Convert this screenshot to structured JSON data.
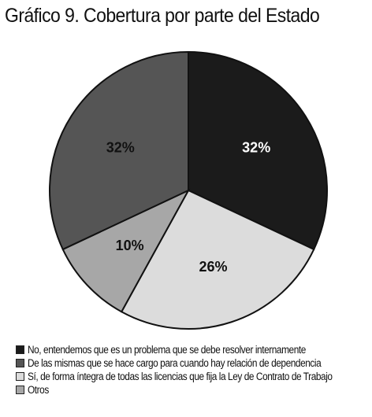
{
  "title": "Gráfico 9. Cobertura por parte del Estado",
  "colors": {
    "black": "#1b1b1b",
    "dark_gray": "#555555",
    "light_gray": "#dcdcdc",
    "medium_gray": "#a7a7a7",
    "outline": "#111111",
    "label_light": "#ffffff",
    "label_dark": "#111111"
  },
  "chart_data": {
    "type": "pie",
    "title": "Gráfico 9. Cobertura por parte del Estado",
    "slices": [
      {
        "label": "No, entendemos que es un problema que se debe resolver internamente",
        "value": 32,
        "display": "32%",
        "color": "#1b1b1b"
      },
      {
        "label": "Sí, de forma íntegra de todas las licencias que fija la Ley de Contrato de Trabajo",
        "value": 26,
        "display": "26%",
        "color": "#dcdcdc"
      },
      {
        "label": "Otros",
        "value": 10,
        "display": "10%",
        "color": "#a7a7a7"
      },
      {
        "label": "De las mismas que se hace cargo para cuando hay relación de dependencia",
        "value": 32,
        "display": "32%",
        "color": "#555555"
      }
    ],
    "legend": [
      {
        "label": "No, entendemos que es un problema que se debe resolver internamente",
        "color": "#1b1b1b"
      },
      {
        "label": "De las mismas que se hace cargo para cuando hay relación de dependencia",
        "color": "#555555"
      },
      {
        "label": "Sí, de forma íntegra de todas las licencias que fija la Ley de Contrato de Trabajo",
        "color": "#dcdcdc"
      },
      {
        "label": "Otros",
        "color": "#a7a7a7"
      }
    ],
    "legend_position": "bottom-left",
    "start_angle": "12 o'clock",
    "direction": "clockwise"
  }
}
